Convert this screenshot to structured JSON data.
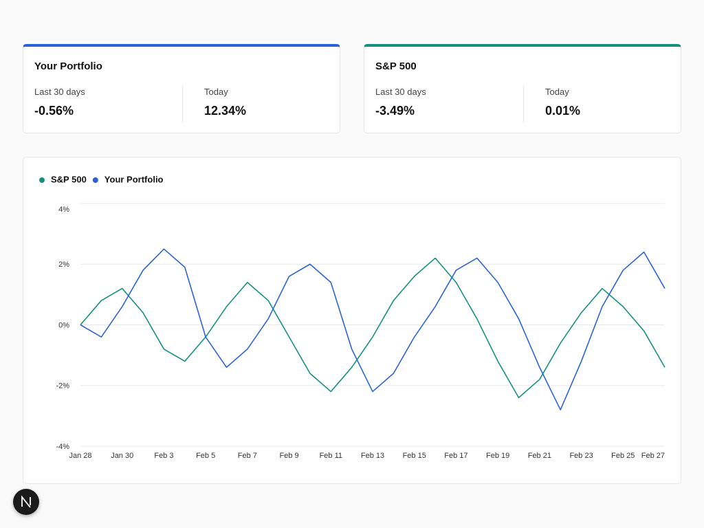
{
  "cards": [
    {
      "title": "Your Portfolio",
      "color": "#2b62d6",
      "stats": [
        {
          "label": "Last 30 days",
          "value": "-0.56%"
        },
        {
          "label": "Today",
          "value": "12.34%"
        }
      ]
    },
    {
      "title": "S&P 500",
      "color": "#14917e",
      "stats": [
        {
          "label": "Last 30 days",
          "value": "-3.49%"
        },
        {
          "label": "Today",
          "value": "0.01%"
        }
      ]
    }
  ],
  "chart_data": {
    "type": "line",
    "categories": [
      "Jan 28",
      null,
      "Jan 30",
      null,
      "Feb 3",
      null,
      "Feb 5",
      null,
      "Feb 7",
      null,
      "Feb 9",
      null,
      "Feb 11",
      null,
      "Feb 13",
      null,
      "Feb 15",
      null,
      "Feb 17",
      null,
      "Feb 19",
      null,
      "Feb 21",
      null,
      "Feb 23",
      null,
      "Feb 25",
      null,
      "Feb 27"
    ],
    "series": [
      {
        "name": "S&P 500",
        "color": "#14917e",
        "values": [
          0,
          0.8,
          1.2,
          0.4,
          -0.8,
          -1.2,
          -0.4,
          0.6,
          1.4,
          0.8,
          -0.4,
          -1.6,
          -2.2,
          -1.4,
          -0.4,
          0.8,
          1.6,
          2.2,
          1.4,
          0.2,
          -1.2,
          -2.4,
          -1.8,
          -0.6,
          0.4,
          1.2,
          0.6,
          -0.2,
          -1.4
        ]
      },
      {
        "name": "Your Portfolio",
        "color": "#2b62d6",
        "values": [
          0,
          -0.4,
          0.6,
          1.8,
          2.5,
          1.9,
          -0.4,
          -1.4,
          -0.8,
          0.2,
          1.6,
          2.0,
          1.4,
          -0.8,
          -2.2,
          -1.6,
          -0.4,
          0.6,
          1.8,
          2.2,
          1.4,
          0.2,
          -1.4,
          -2.8,
          -1.2,
          0.6,
          1.8,
          2.4,
          1.2
        ]
      }
    ],
    "ylim": [
      -4,
      4
    ],
    "yticks": [
      {
        "value": -4,
        "label": "-4%"
      },
      {
        "value": -2,
        "label": "-2%"
      },
      {
        "value": 0,
        "label": "0%"
      },
      {
        "value": 2,
        "label": "2%"
      },
      {
        "value": 4,
        "label": "4%"
      }
    ],
    "grid": true
  }
}
